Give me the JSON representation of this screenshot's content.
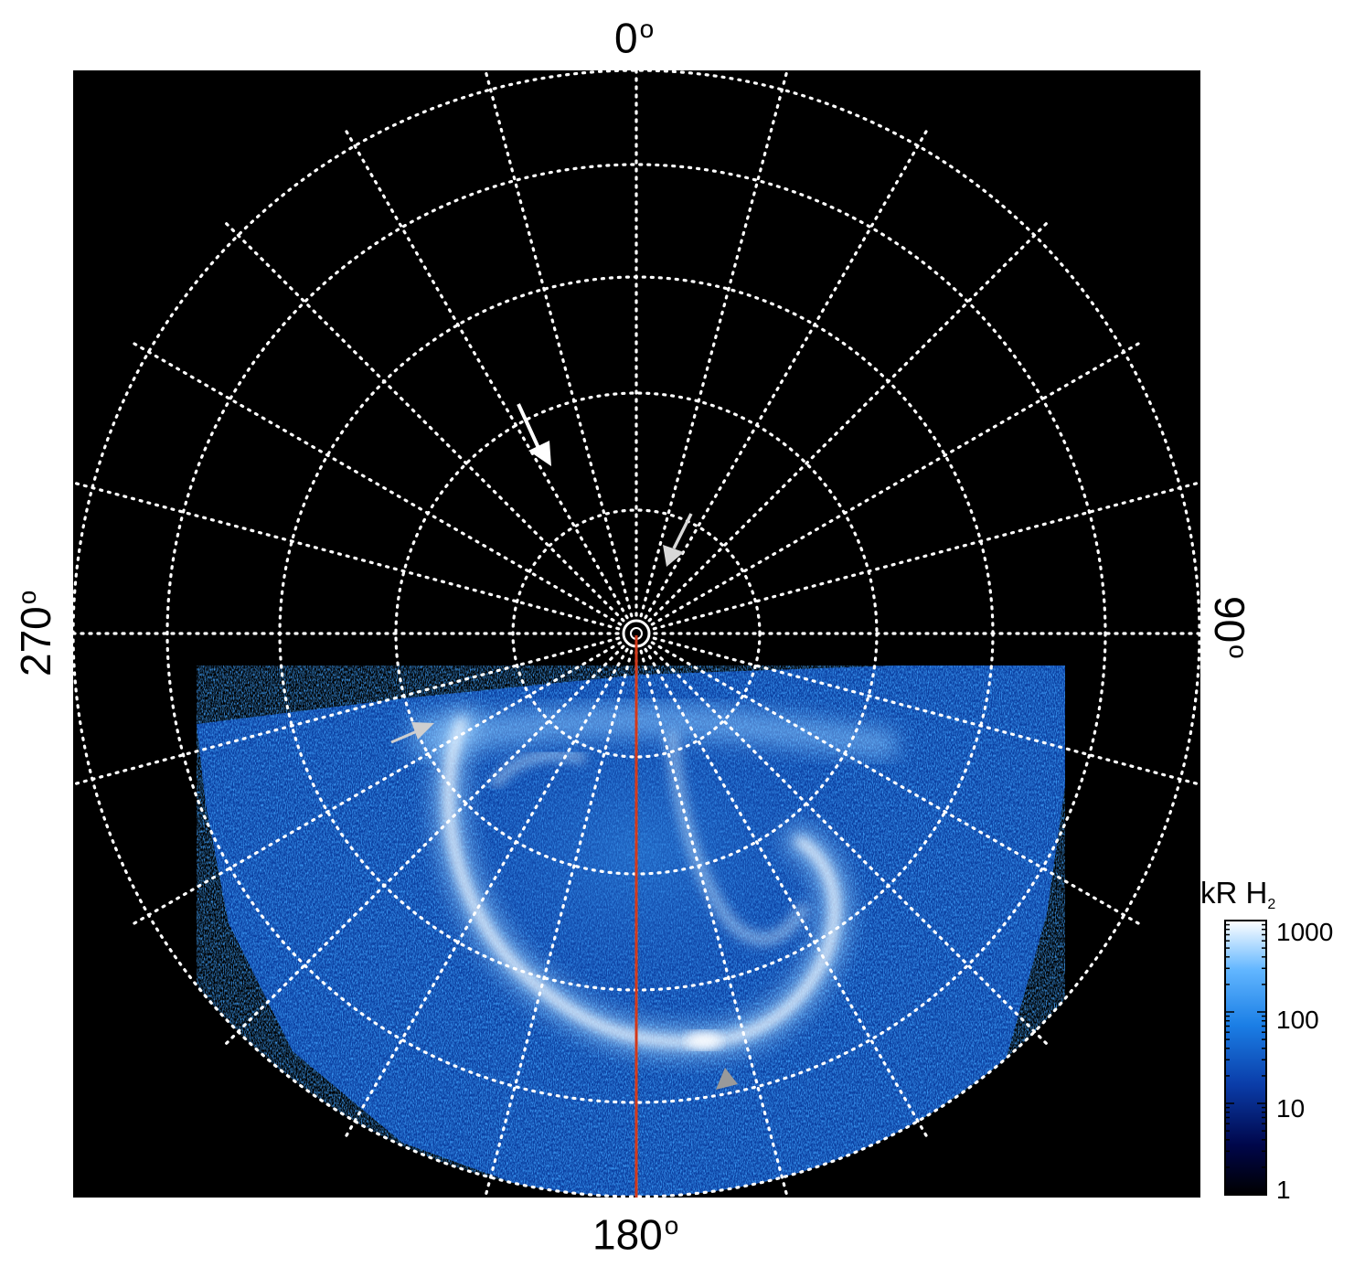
{
  "figure": {
    "lon_labels": {
      "top": "0",
      "right": "90",
      "bottom": "180",
      "left": "270",
      "unit": "o"
    },
    "colorbar": {
      "title_main": "kR H",
      "title_sub": "2",
      "ticks": [
        "1000",
        "100",
        "10",
        "1"
      ],
      "scale": "log",
      "range": [
        1,
        1000
      ],
      "colors": [
        "#000000",
        "#00064a",
        "#0a3ca8",
        "#1b7fe6",
        "#62b6ff",
        "#ffffff"
      ]
    },
    "colors": {
      "background": "#000000",
      "grid": "#ffffff",
      "meridian_line": "#d2391a",
      "arrow_white": "#ffffff",
      "arrow_light_gray": "#cfcfcf",
      "arrow_dark_gray": "#9a9a9a"
    },
    "icons": [
      "white-arrow-icon",
      "light-gray-arrow-icon",
      "dark-gray-triangle-icon"
    ]
  }
}
